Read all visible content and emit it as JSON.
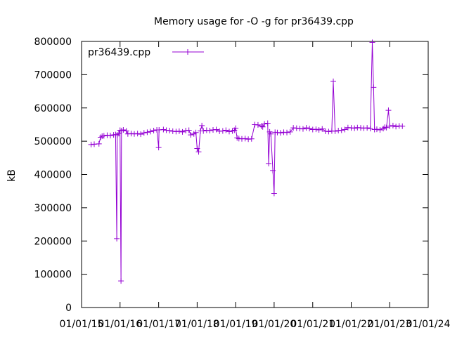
{
  "chart_data": {
    "type": "line",
    "title": "Memory usage for -O -g for pr36439.cpp",
    "ylabel": "kB",
    "xlabel": "",
    "ylim": [
      0,
      800000
    ],
    "yticks": [
      0,
      100000,
      200000,
      300000,
      400000,
      500000,
      600000,
      700000,
      800000
    ],
    "yticklabels": [
      "0",
      "100000",
      "200000",
      "300000",
      "400000",
      "500000",
      "600000",
      "700000",
      "800000"
    ],
    "xlim": [
      "2015-01-01",
      "2024-01-01"
    ],
    "xticks": [
      "2015-01-01",
      "2016-01-01",
      "2017-01-01",
      "2018-01-01",
      "2019-01-01",
      "2020-01-01",
      "2021-01-01",
      "2022-01-01",
      "2023-01-01",
      "2024-01-01"
    ],
    "xticklabels": [
      "01/01/15",
      "01/01/16",
      "01/01/17",
      "01/01/18",
      "01/01/19",
      "01/01/20",
      "01/01/21",
      "01/01/22",
      "01/01/23",
      "01/01/24"
    ],
    "legend_position": "top-left",
    "grid": false,
    "colors": {
      "series": "#9400d3"
    },
    "series": [
      {
        "name": "pr36439.cpp",
        "points": [
          [
            "2015-04-01",
            490000
          ],
          [
            "2015-05-01",
            491000
          ],
          [
            "2015-06-15",
            492000
          ],
          [
            "2015-07-01",
            512000
          ],
          [
            "2015-07-15",
            515000
          ],
          [
            "2015-08-01",
            516000
          ],
          [
            "2015-09-01",
            518000
          ],
          [
            "2015-10-01",
            517000
          ],
          [
            "2015-11-01",
            519000
          ],
          [
            "2015-11-20",
            520000
          ],
          [
            "2015-12-01",
            207000
          ],
          [
            "2015-12-05",
            519000
          ],
          [
            "2015-12-20",
            523000
          ],
          [
            "2016-01-01",
            533000
          ],
          [
            "2016-01-10",
            80000
          ],
          [
            "2016-01-15",
            532000
          ],
          [
            "2016-02-01",
            534000
          ],
          [
            "2016-03-01",
            531000
          ],
          [
            "2016-03-15",
            522000
          ],
          [
            "2016-04-15",
            523000
          ],
          [
            "2016-05-15",
            522000
          ],
          [
            "2016-06-15",
            523000
          ],
          [
            "2016-07-15",
            521000
          ],
          [
            "2016-08-15",
            525000
          ],
          [
            "2016-09-15",
            527000
          ],
          [
            "2016-10-15",
            529000
          ],
          [
            "2016-11-15",
            532000
          ],
          [
            "2016-12-15",
            534000
          ],
          [
            "2017-01-01",
            481000
          ],
          [
            "2017-01-05",
            534000
          ],
          [
            "2017-02-15",
            535000
          ],
          [
            "2017-03-15",
            533000
          ],
          [
            "2017-04-15",
            532000
          ],
          [
            "2017-05-15",
            530000
          ],
          [
            "2017-06-15",
            529000
          ],
          [
            "2017-07-15",
            530000
          ],
          [
            "2017-08-15",
            528000
          ],
          [
            "2017-09-15",
            532000
          ],
          [
            "2017-10-15",
            533000
          ],
          [
            "2017-11-01",
            519000
          ],
          [
            "2017-12-01",
            522000
          ],
          [
            "2017-12-20",
            526000
          ],
          [
            "2018-01-01",
            478000
          ],
          [
            "2018-01-15",
            468000
          ],
          [
            "2018-02-01",
            531000
          ],
          [
            "2018-02-15",
            547000
          ],
          [
            "2018-03-01",
            531000
          ],
          [
            "2018-04-01",
            533000
          ],
          [
            "2018-05-01",
            532000
          ],
          [
            "2018-06-01",
            534000
          ],
          [
            "2018-07-01",
            535000
          ],
          [
            "2018-08-01",
            530000
          ],
          [
            "2018-09-01",
            531000
          ],
          [
            "2018-10-01",
            533000
          ],
          [
            "2018-11-01",
            529000
          ],
          [
            "2018-12-01",
            531000
          ],
          [
            "2018-12-20",
            533000
          ],
          [
            "2019-01-01",
            539000
          ],
          [
            "2019-01-15",
            510000
          ],
          [
            "2019-02-01",
            508000
          ],
          [
            "2019-03-01",
            507000
          ],
          [
            "2019-04-01",
            508000
          ],
          [
            "2019-05-01",
            506000
          ],
          [
            "2019-06-01",
            507000
          ],
          [
            "2019-07-01",
            550000
          ],
          [
            "2019-08-01",
            549000
          ],
          [
            "2019-09-01",
            545000
          ],
          [
            "2019-09-15",
            543000
          ],
          [
            "2019-10-01",
            552000
          ],
          [
            "2019-11-01",
            554000
          ],
          [
            "2019-11-10",
            433000
          ],
          [
            "2019-11-20",
            528000
          ],
          [
            "2019-12-01",
            522000
          ],
          [
            "2019-12-20",
            412000
          ],
          [
            "2020-01-01",
            343000
          ],
          [
            "2020-01-10",
            527000
          ],
          [
            "2020-02-01",
            526000
          ],
          [
            "2020-03-01",
            525000
          ],
          [
            "2020-04-01",
            527000
          ],
          [
            "2020-05-01",
            526000
          ],
          [
            "2020-06-01",
            528000
          ],
          [
            "2020-07-01",
            540000
          ],
          [
            "2020-08-01",
            539000
          ],
          [
            "2020-09-01",
            538000
          ],
          [
            "2020-10-01",
            537000
          ],
          [
            "2020-11-01",
            540000
          ],
          [
            "2020-12-01",
            538000
          ],
          [
            "2021-01-01",
            535000
          ],
          [
            "2021-02-01",
            536000
          ],
          [
            "2021-03-01",
            534000
          ],
          [
            "2021-04-01",
            537000
          ],
          [
            "2021-05-01",
            530000
          ],
          [
            "2021-06-01",
            529000
          ],
          [
            "2021-07-01",
            531000
          ],
          [
            "2021-07-15",
            680000
          ],
          [
            "2021-08-01",
            530000
          ],
          [
            "2021-09-01",
            532000
          ],
          [
            "2021-10-01",
            533000
          ],
          [
            "2021-11-01",
            535000
          ],
          [
            "2021-12-01",
            541000
          ],
          [
            "2022-01-01",
            540000
          ],
          [
            "2022-02-01",
            539000
          ],
          [
            "2022-03-01",
            541000
          ],
          [
            "2022-04-01",
            540000
          ],
          [
            "2022-05-01",
            539000
          ],
          [
            "2022-06-01",
            540000
          ],
          [
            "2022-07-01",
            538000
          ],
          [
            "2022-07-20",
            797000
          ],
          [
            "2022-08-01",
            662000
          ],
          [
            "2022-08-10",
            535000
          ],
          [
            "2022-09-01",
            536000
          ],
          [
            "2022-10-01",
            534000
          ],
          [
            "2022-11-01",
            538000
          ],
          [
            "2022-11-15",
            542000
          ],
          [
            "2022-12-01",
            541000
          ],
          [
            "2022-12-20",
            593000
          ],
          [
            "2023-01-01",
            545000
          ],
          [
            "2023-02-01",
            547000
          ],
          [
            "2023-03-01",
            544000
          ],
          [
            "2023-04-01",
            546000
          ],
          [
            "2023-05-01",
            545000
          ]
        ]
      }
    ]
  }
}
